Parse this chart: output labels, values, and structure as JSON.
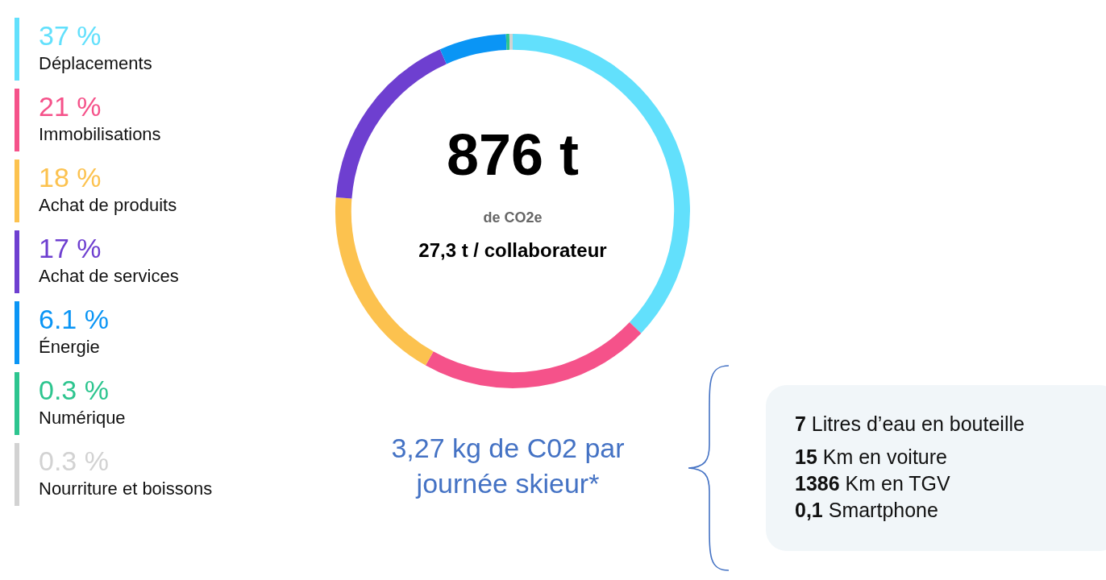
{
  "chart_data": {
    "type": "donut",
    "title": "876 t",
    "subtitle": "de CO2e",
    "categories": [
      "Déplacements",
      "Immobilisations",
      "Achat de produits",
      "Achat de services",
      "Énergie",
      "Numérique",
      "Nourriture et boissons"
    ],
    "values": [
      37,
      21,
      18,
      17,
      6.1,
      0.3,
      0.3
    ],
    "colors": [
      "#62e0fc",
      "#f5528a",
      "#fcc24f",
      "#6e3fd0",
      "#0a95f5",
      "#2dc58f",
      "#d2d2d2"
    ],
    "legend": "left",
    "value_labels": [
      "37 %",
      "21 %",
      "18 %",
      "17 %",
      "6.1 %",
      "0.3 %",
      "0.3 %"
    ],
    "annotations": [
      "27,3 t / collaborateur",
      "3,27 kg de C02 par journée skieur*",
      "7 Litres d’eau en bouteille",
      "15 Km en voiture",
      "1386 Km en TGV",
      "0,1 Smartphone"
    ]
  }
}
